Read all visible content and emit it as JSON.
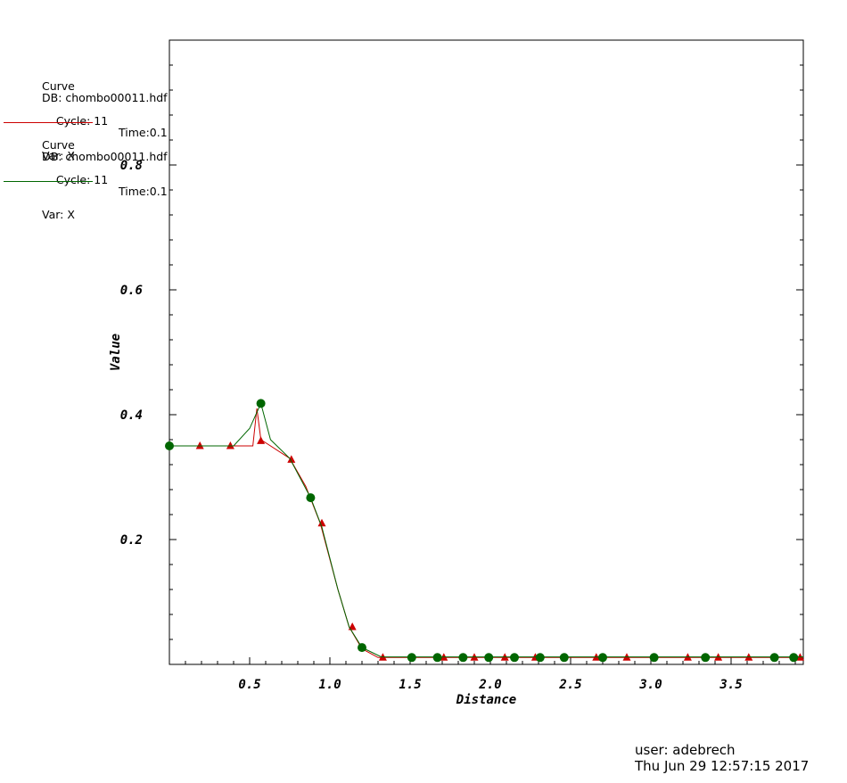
{
  "legend": [
    {
      "title": "Curve",
      "db": "DB: chombo00011.hdf",
      "cycle": "Cycle: 11",
      "time": "Time:0.1",
      "var": "Var: X",
      "color": "#cc0000"
    },
    {
      "title": "Curve",
      "db": "DB: chombo00011.hdf",
      "cycle": "Cycle: 11",
      "time": "Time:0.1",
      "var": "Var: X",
      "color": "#006600"
    }
  ],
  "footer": {
    "user": "user: adebrech",
    "timestamp": "Thu Jun 29 12:57:15 2017"
  },
  "chart_data": {
    "type": "line",
    "xlabel": "Distance",
    "ylabel": "Value",
    "xlim": [
      0,
      3.95
    ],
    "ylim": [
      0,
      1.0
    ],
    "xticks": [
      0.5,
      1.0,
      1.5,
      2.0,
      2.5,
      3.0,
      3.5
    ],
    "xtick_labels": [
      "0.5",
      "1.0",
      "1.5",
      "2.0",
      "2.5",
      "3.0",
      "3.5"
    ],
    "yticks": [
      0.2,
      0.4,
      0.6,
      0.8
    ],
    "ytick_labels": [
      "0.2",
      "0.4",
      "0.6",
      "0.8"
    ],
    "grid": false,
    "legend_position": "top-left",
    "series": [
      {
        "color": "#cc0000",
        "marker": "triangle",
        "line": [
          [
            0,
            0.35
          ],
          [
            0.52,
            0.35
          ],
          [
            0.545,
            0.41
          ],
          [
            0.57,
            0.36
          ],
          [
            0.75,
            0.33
          ],
          [
            0.85,
            0.285
          ],
          [
            0.94,
            0.226
          ],
          [
            1.05,
            0.12
          ],
          [
            1.12,
            0.06
          ],
          [
            1.2,
            0.025
          ],
          [
            1.3,
            0.011
          ],
          [
            3.95,
            0.011
          ]
        ],
        "markers": [
          [
            0.19,
            0.35
          ],
          [
            0.38,
            0.35
          ],
          [
            0.57,
            0.358
          ],
          [
            0.76,
            0.328
          ],
          [
            0.95,
            0.226
          ],
          [
            1.14,
            0.06
          ],
          [
            1.33,
            0.011
          ],
          [
            1.71,
            0.011
          ],
          [
            1.9,
            0.011
          ],
          [
            2.09,
            0.011
          ],
          [
            2.28,
            0.011
          ],
          [
            2.66,
            0.011
          ],
          [
            2.85,
            0.011
          ],
          [
            3.23,
            0.011
          ],
          [
            3.42,
            0.011
          ],
          [
            3.61,
            0.011
          ],
          [
            3.93,
            0.011
          ]
        ]
      },
      {
        "color": "#006600",
        "marker": "circle",
        "line": [
          [
            0,
            0.35
          ],
          [
            0.4,
            0.35
          ],
          [
            0.5,
            0.378
          ],
          [
            0.57,
            0.418
          ],
          [
            0.63,
            0.36
          ],
          [
            0.75,
            0.33
          ],
          [
            0.88,
            0.267
          ],
          [
            0.95,
            0.22
          ],
          [
            1.05,
            0.12
          ],
          [
            1.12,
            0.06
          ],
          [
            1.2,
            0.027
          ],
          [
            1.32,
            0.012
          ],
          [
            3.95,
            0.012
          ]
        ],
        "markers": [
          [
            0.0,
            0.35
          ],
          [
            0.57,
            0.418
          ],
          [
            0.88,
            0.267
          ],
          [
            1.2,
            0.027
          ],
          [
            1.51,
            0.011
          ],
          [
            1.67,
            0.011
          ],
          [
            1.83,
            0.011
          ],
          [
            1.99,
            0.011
          ],
          [
            2.15,
            0.011
          ],
          [
            2.31,
            0.011
          ],
          [
            2.46,
            0.011
          ],
          [
            2.7,
            0.011
          ],
          [
            3.02,
            0.011
          ],
          [
            3.34,
            0.011
          ],
          [
            3.77,
            0.011
          ],
          [
            3.89,
            0.011
          ]
        ]
      }
    ]
  }
}
